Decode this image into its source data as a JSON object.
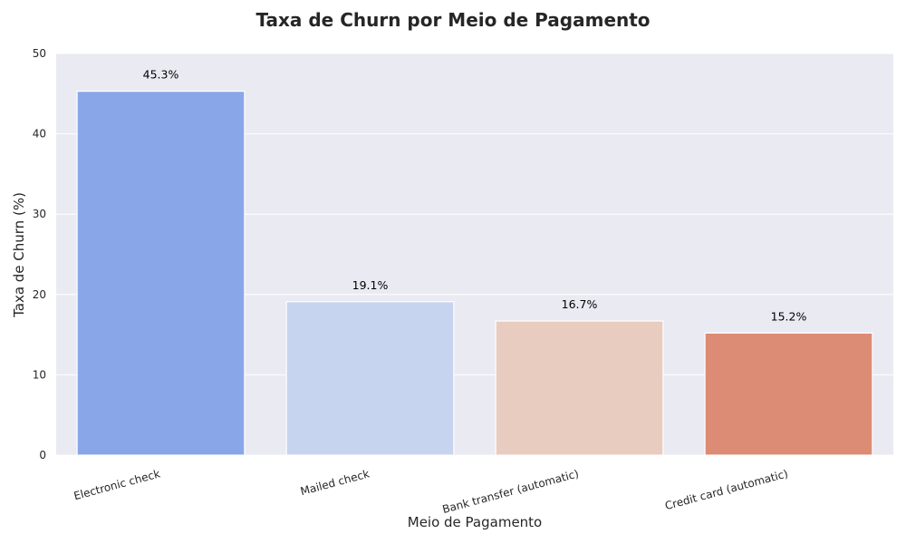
{
  "chart_data": {
    "type": "bar",
    "title": "Taxa de Churn por Meio de Pagamento",
    "xlabel": "Meio de Pagamento",
    "ylabel": "Taxa de Churn (%)",
    "categories": [
      "Electronic check",
      "Mailed check",
      "Bank transfer (automatic)",
      "Credit card (automatic)"
    ],
    "values": [
      45.3,
      19.1,
      16.7,
      15.2
    ],
    "data_labels": [
      "45.3%",
      "19.1%",
      "16.7%",
      "15.2%"
    ],
    "colors": [
      "#89a6e9",
      "#c6d4ef",
      "#e8ccbf",
      "#dc8b75"
    ],
    "ylim": [
      0,
      50
    ],
    "yticks": [
      0,
      10,
      20,
      30,
      40,
      50
    ],
    "grid": true,
    "background": "#eaeaf2"
  }
}
